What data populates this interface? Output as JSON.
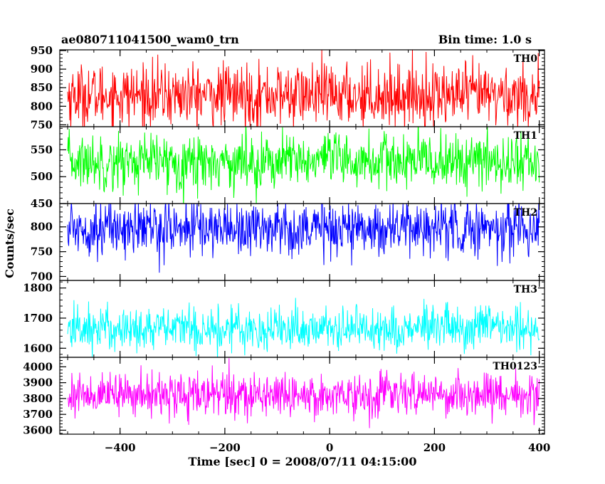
{
  "header": {
    "title": "ae080711041500_wam0_trn",
    "bin_time": "Bin time: 1.0 s"
  },
  "chart_data": {
    "type": "line",
    "xlabel": "Time [sec] 0 = 2008/07/11 04:15:00",
    "ylabel": "Counts/sec",
    "xlim": [
      -515,
      410
    ],
    "x_ticks": [
      -400,
      -200,
      0,
      200,
      400
    ],
    "x_range_data": [
      -500,
      400
    ],
    "bin_time_s": 1.0,
    "panels": [
      {
        "name": "TH0",
        "color": "#ff0000",
        "ylim": [
          745,
          952
        ],
        "ticks": [
          750,
          800,
          850,
          900,
          950
        ],
        "mean": 830,
        "spread": 42
      },
      {
        "name": "TH1",
        "color": "#00ff00",
        "ylim": [
          450,
          593
        ],
        "ticks": [
          450,
          500,
          550
        ],
        "mean": 528,
        "spread": 26
      },
      {
        "name": "TH2",
        "color": "#0000ff",
        "ylim": [
          692,
          847
        ],
        "ticks": [
          700,
          750,
          800
        ],
        "mean": 798,
        "spread": 28
      },
      {
        "name": "TH3",
        "color": "#00ffff",
        "ylim": [
          1570,
          1825
        ],
        "ticks": [
          1600,
          1700,
          1800
        ],
        "mean": 1666,
        "spread": 38
      },
      {
        "name": "TH0123",
        "color": "#ff00ff",
        "ylim": [
          3575,
          4060
        ],
        "ticks": [
          3600,
          3700,
          3800,
          3900,
          4000
        ],
        "mean": 3825,
        "spread": 68
      }
    ]
  }
}
